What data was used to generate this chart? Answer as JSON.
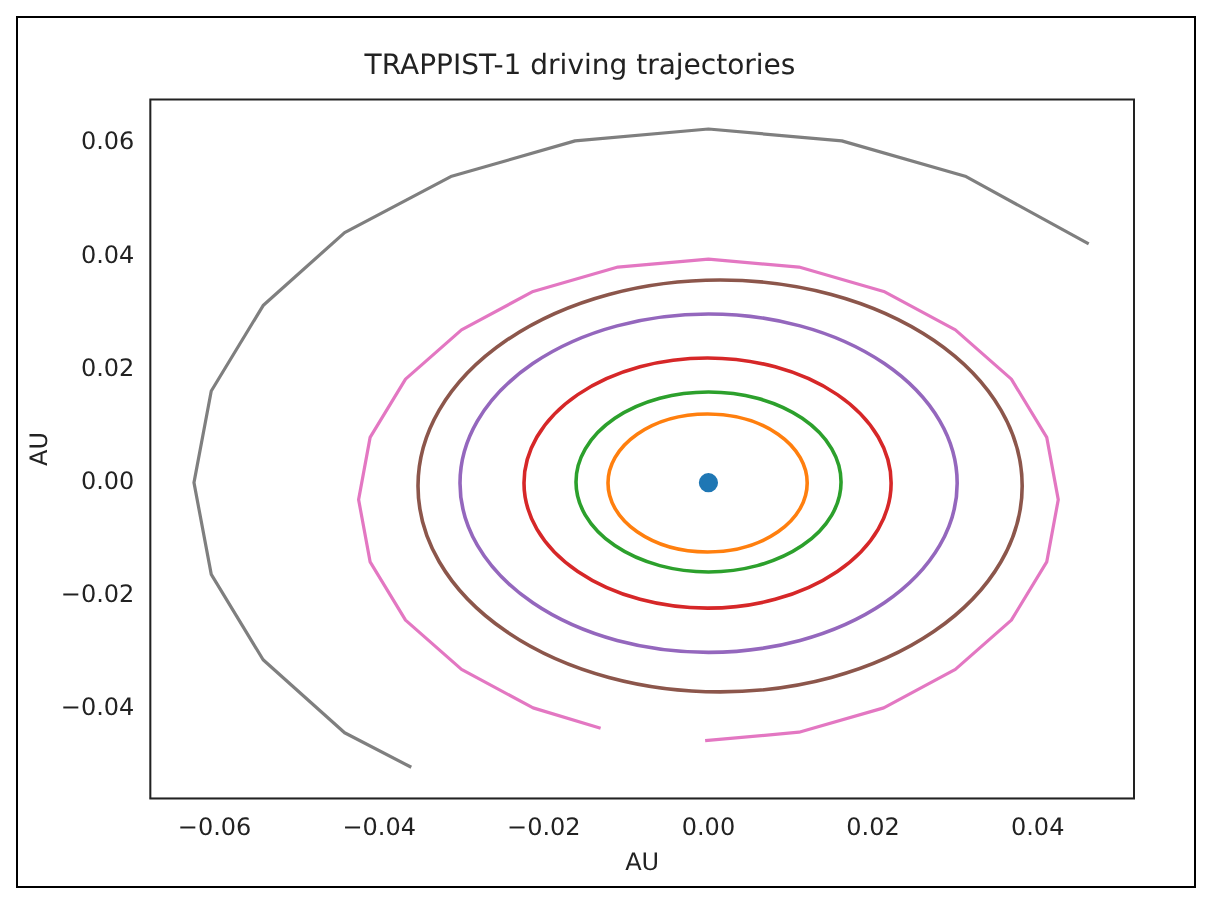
{
  "chart_data": {
    "type": "line",
    "title": "TRAPPIST-1 driving trajectories",
    "xlabel": "AU",
    "ylabel": "AU",
    "xlim": [
      -0.0678,
      0.0517
    ],
    "ylim": [
      -0.0558,
      0.0677
    ],
    "xticks": [
      {
        "value": -0.06,
        "label": "−0.06"
      },
      {
        "value": -0.04,
        "label": "−0.04"
      },
      {
        "value": -0.02,
        "label": "−0.02"
      },
      {
        "value": 0,
        "label": "0.00"
      },
      {
        "value": 0.02,
        "label": "0.02"
      },
      {
        "value": 0.04,
        "label": "0.04"
      }
    ],
    "yticks": [
      {
        "value": -0.04,
        "label": "−0.04"
      },
      {
        "value": -0.02,
        "label": "−0.02"
      },
      {
        "value": 0,
        "label": "0.00"
      },
      {
        "value": 0.02,
        "label": "0.02"
      },
      {
        "value": 0.04,
        "label": "0.04"
      },
      {
        "value": 0.06,
        "label": "0.06"
      }
    ],
    "grid": false,
    "legend": false,
    "marker": "none",
    "line_style": "solid",
    "series": [
      {
        "type": "scatter",
        "marker": "circle",
        "color": "#1f77b4",
        "x": [
          0
        ],
        "values": [
          0
        ]
      },
      {
        "color": "#e377c2",
        "x": [
          -0.0004,
          0.011,
          0.0213,
          0.03,
          0.0368,
          0.0411,
          0.0425,
          0.0411,
          0.0368,
          0.03,
          0.0213,
          0.011,
          0,
          -0.011,
          -0.0213,
          -0.03,
          -0.0368,
          -0.0411,
          -0.0425,
          -0.0411,
          -0.0368,
          -0.03,
          -0.0213,
          -0.0131
        ],
        "values": [
          -0.0456,
          -0.0441,
          -0.0398,
          -0.033,
          -0.0243,
          -0.014,
          -0.003,
          0.008,
          0.0183,
          0.027,
          0.0338,
          0.0381,
          0.0395,
          0.0381,
          0.0338,
          0.027,
          0.0183,
          0.008,
          -0.003,
          -0.014,
          -0.0243,
          -0.033,
          -0.0398,
          -0.0434
        ]
      },
      {
        "color": "#7f7f7f",
        "x": [
          0.0462,
          0.0313,
          0.0162,
          0,
          -0.0162,
          -0.0313,
          -0.0442,
          -0.0541,
          -0.0604,
          -0.0625,
          -0.0604,
          -0.0541,
          -0.0442,
          -0.0361
        ],
        "values": [
          0.0422,
          0.0541,
          0.0604,
          0.0625,
          0.0604,
          0.0541,
          0.0442,
          0.0313,
          0.0162,
          0,
          -0.0162,
          -0.0313,
          -0.0442,
          -0.0503
        ]
      }
    ]
  }
}
